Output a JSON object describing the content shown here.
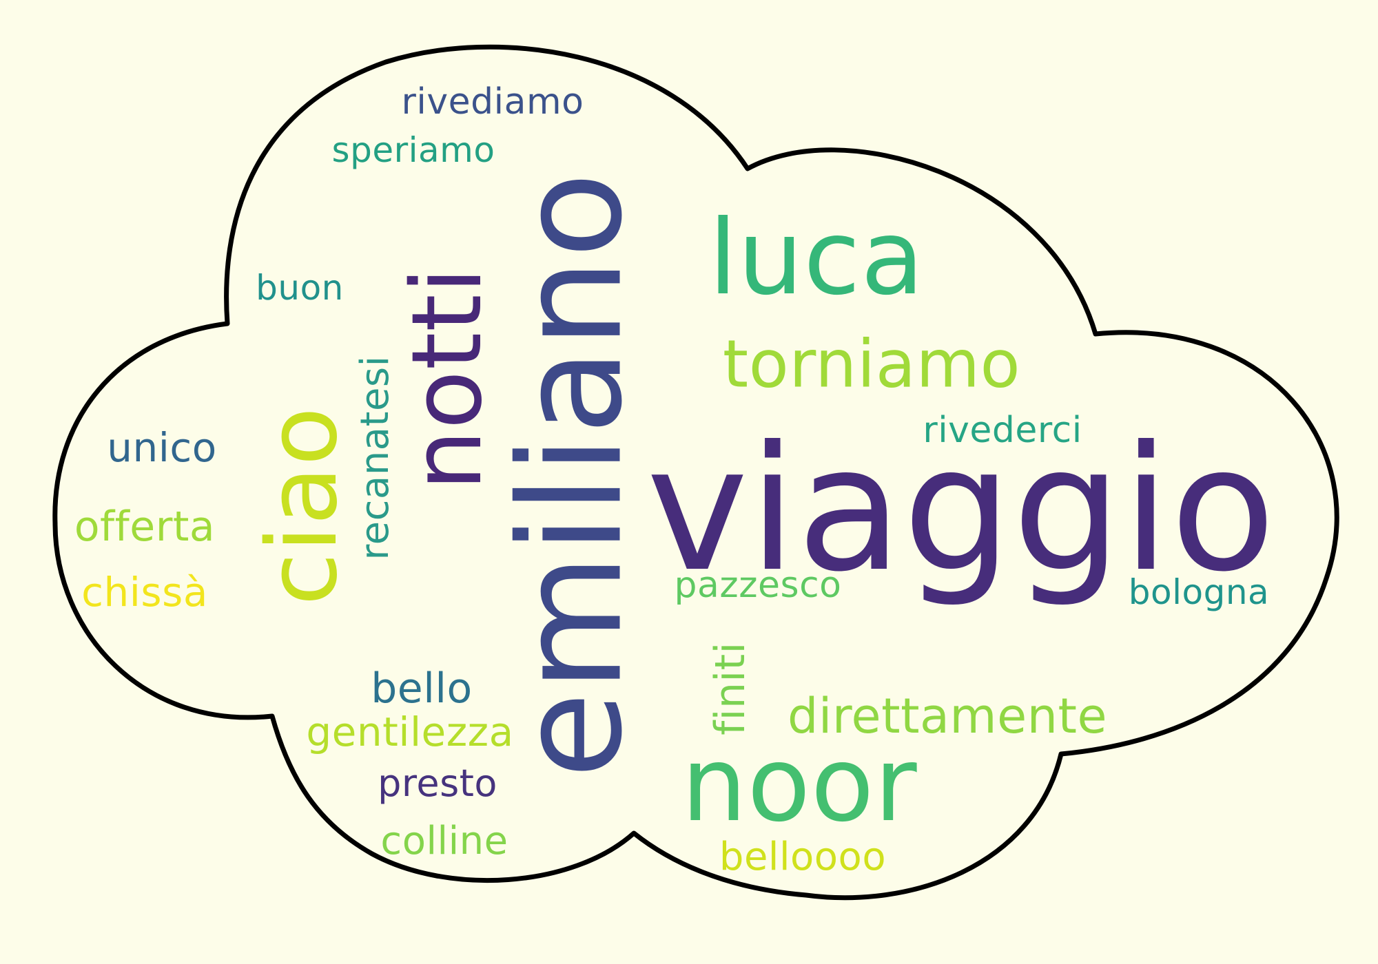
{
  "words": [
    {
      "text": "viaggio",
      "color": "#472d7b",
      "vertical": false
    },
    {
      "text": "emiliano",
      "color": "#3e4a89",
      "vertical": true
    },
    {
      "text": "luca",
      "color": "#35b779",
      "vertical": false
    },
    {
      "text": "noor",
      "color": "#44bf70",
      "vertical": false
    },
    {
      "text": "notti",
      "color": "#482878",
      "vertical": true
    },
    {
      "text": "ciao",
      "color": "#c8e020",
      "vertical": true
    },
    {
      "text": "torniamo",
      "color": "#a0da39",
      "vertical": false
    },
    {
      "text": "direttamente",
      "color": "#90d743",
      "vertical": false
    },
    {
      "text": "recanatesi",
      "color": "#2a9a8a",
      "vertical": true
    },
    {
      "text": "pazzesco",
      "color": "#5ec962",
      "vertical": false
    },
    {
      "text": "rivederci",
      "color": "#26a585",
      "vertical": false
    },
    {
      "text": "bologna",
      "color": "#1f948c",
      "vertical": false
    },
    {
      "text": "finiti",
      "color": "#7ad151",
      "vertical": true
    },
    {
      "text": "rivediamo",
      "color": "#3b528b",
      "vertical": false
    },
    {
      "text": "speriamo",
      "color": "#23a083",
      "vertical": false
    },
    {
      "text": "buon",
      "color": "#21918c",
      "vertical": false
    },
    {
      "text": "unico",
      "color": "#31668e",
      "vertical": false
    },
    {
      "text": "offerta",
      "color": "#9fda3a",
      "vertical": false
    },
    {
      "text": "chissà",
      "color": "#f2e51d",
      "vertical": false
    },
    {
      "text": "bello",
      "color": "#2c728e",
      "vertical": false
    },
    {
      "text": "gentilezza",
      "color": "#b5de2b",
      "vertical": false
    },
    {
      "text": "presto",
      "color": "#46337e",
      "vertical": false
    },
    {
      "text": "colline",
      "color": "#84d44b",
      "vertical": false
    },
    {
      "text": "belloooo",
      "color": "#d0e11c",
      "vertical": false
    }
  ]
}
